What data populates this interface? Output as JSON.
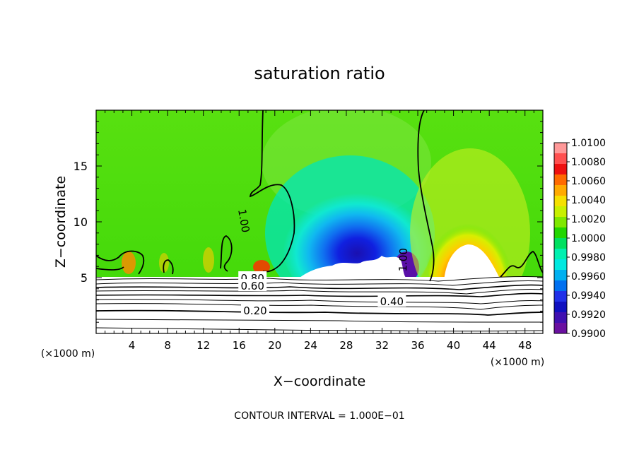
{
  "chart_data": {
    "type": "heatmap",
    "title": "saturation ratio",
    "xlabel": "X−coordinate",
    "ylabel": "Z−coordinate",
    "x_unit_left": "(×1000 m)",
    "x_unit_right": "(×1000 m)",
    "footer": "CONTOUR INTERVAL = 1.000E−01",
    "xlim": [
      0,
      50
    ],
    "ylim": [
      0,
      20
    ],
    "x_ticks": [
      4,
      8,
      12,
      16,
      20,
      24,
      28,
      32,
      36,
      40,
      44,
      48
    ],
    "y_ticks": [
      5,
      10,
      15
    ],
    "grid": false,
    "colorbar": {
      "position": "right",
      "ticks": [
        "1.0100",
        "1.0080",
        "1.0060",
        "1.0040",
        "1.0020",
        "1.0000",
        "0.9980",
        "0.9960",
        "0.9940",
        "0.9920",
        "0.9900"
      ],
      "colors": [
        "#ff9999",
        "#ff5050",
        "#ee1010",
        "#ff6a00",
        "#ffaa00",
        "#f5e000",
        "#c8f000",
        "#7fe800",
        "#22d600",
        "#00e060",
        "#00f0b0",
        "#00e8e0",
        "#00b0f0",
        "#0070f0",
        "#2030e8",
        "#1010c0",
        "#4010b0",
        "#6a10a0"
      ]
    },
    "contour_labels": [
      {
        "text": "1.00",
        "x": 16.6,
        "z": 10.1,
        "rot": 80
      },
      {
        "text": "1.00",
        "x": 34.3,
        "z": 6.6,
        "rot": -88
      },
      {
        "text": "0.80",
        "x": 17.5,
        "z": 5.0,
        "rot": 0
      },
      {
        "text": "0.60",
        "x": 17.5,
        "z": 4.3,
        "rot": 0
      },
      {
        "text": "0.40",
        "x": 33.1,
        "z": 2.9,
        "rot": 0
      },
      {
        "text": "0.20",
        "x": 17.8,
        "z": 2.1,
        "rot": 0
      }
    ]
  }
}
